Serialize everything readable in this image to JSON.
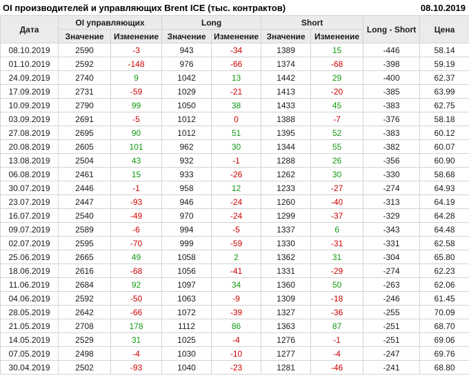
{
  "title": "OI производителей и управляющих Brent ICE (тыс. контрактов)",
  "report_date": "08.10.2019",
  "table": {
    "col_date": "Дата",
    "group_oi": "OI управляющих",
    "group_long": "Long",
    "group_short": "Short",
    "col_long_short": "Long - Short",
    "col_price": "Цена",
    "sub_value": "Значение",
    "sub_change": "Изменение"
  },
  "colors": {
    "positive": "#119911",
    "negative": "#cc0000"
  },
  "chart_data": {
    "type": "table",
    "title": "OI производителей и управляющих Brent ICE (тыс. контрактов)",
    "columns": [
      "Дата",
      "OI управляющих Значение",
      "OI управляющих Изменение",
      "Long Значение",
      "Long Изменение",
      "Short Значение",
      "Short Изменение",
      "Long - Short",
      "Цена"
    ],
    "rows": [
      {
        "date": "08.10.2019",
        "oi": 2590,
        "oi_chg": -3,
        "long": 943,
        "long_chg": -34,
        "short": 1389,
        "short_chg": 15,
        "long_short": -446,
        "price": "58.14"
      },
      {
        "date": "01.10.2019",
        "oi": 2592,
        "oi_chg": -148,
        "long": 976,
        "long_chg": -66,
        "short": 1374,
        "short_chg": -68,
        "long_short": -398,
        "price": "59.19"
      },
      {
        "date": "24.09.2019",
        "oi": 2740,
        "oi_chg": 9,
        "long": 1042,
        "long_chg": 13,
        "short": 1442,
        "short_chg": 29,
        "long_short": -400,
        "price": "62.37"
      },
      {
        "date": "17.09.2019",
        "oi": 2731,
        "oi_chg": -59,
        "long": 1029,
        "long_chg": -21,
        "short": 1413,
        "short_chg": -20,
        "long_short": -385,
        "price": "63.99"
      },
      {
        "date": "10.09.2019",
        "oi": 2790,
        "oi_chg": 99,
        "long": 1050,
        "long_chg": 38,
        "short": 1433,
        "short_chg": 45,
        "long_short": -383,
        "price": "62.75"
      },
      {
        "date": "03.09.2019",
        "oi": 2691,
        "oi_chg": -5,
        "long": 1012,
        "long_chg": 0,
        "short": 1388,
        "short_chg": -7,
        "long_short": -376,
        "price": "58.18"
      },
      {
        "date": "27.08.2019",
        "oi": 2695,
        "oi_chg": 90,
        "long": 1012,
        "long_chg": 51,
        "short": 1395,
        "short_chg": 52,
        "long_short": -383,
        "price": "60.12"
      },
      {
        "date": "20.08.2019",
        "oi": 2605,
        "oi_chg": 101,
        "long": 962,
        "long_chg": 30,
        "short": 1344,
        "short_chg": 55,
        "long_short": -382,
        "price": "60.07"
      },
      {
        "date": "13.08.2019",
        "oi": 2504,
        "oi_chg": 43,
        "long": 932,
        "long_chg": -1,
        "short": 1288,
        "short_chg": 26,
        "long_short": -356,
        "price": "60.90"
      },
      {
        "date": "06.08.2019",
        "oi": 2461,
        "oi_chg": 15,
        "long": 933,
        "long_chg": -26,
        "short": 1262,
        "short_chg": 30,
        "long_short": -330,
        "price": "58.68"
      },
      {
        "date": "30.07.2019",
        "oi": 2446,
        "oi_chg": -1,
        "long": 958,
        "long_chg": 12,
        "short": 1233,
        "short_chg": -27,
        "long_short": -274,
        "price": "64.93"
      },
      {
        "date": "23.07.2019",
        "oi": 2447,
        "oi_chg": -93,
        "long": 946,
        "long_chg": -24,
        "short": 1260,
        "short_chg": -40,
        "long_short": -313,
        "price": "64.19"
      },
      {
        "date": "16.07.2019",
        "oi": 2540,
        "oi_chg": -49,
        "long": 970,
        "long_chg": -24,
        "short": 1299,
        "short_chg": -37,
        "long_short": -329,
        "price": "64.28"
      },
      {
        "date": "09.07.2019",
        "oi": 2589,
        "oi_chg": -6,
        "long": 994,
        "long_chg": -5,
        "short": 1337,
        "short_chg": 6,
        "long_short": -343,
        "price": "64.48"
      },
      {
        "date": "02.07.2019",
        "oi": 2595,
        "oi_chg": -70,
        "long": 999,
        "long_chg": -59,
        "short": 1330,
        "short_chg": -31,
        "long_short": -331,
        "price": "62.58"
      },
      {
        "date": "25.06.2019",
        "oi": 2665,
        "oi_chg": 49,
        "long": 1058,
        "long_chg": 2,
        "short": 1362,
        "short_chg": 31,
        "long_short": -304,
        "price": "65.80"
      },
      {
        "date": "18.06.2019",
        "oi": 2616,
        "oi_chg": -68,
        "long": 1056,
        "long_chg": -41,
        "short": 1331,
        "short_chg": -29,
        "long_short": -274,
        "price": "62.23"
      },
      {
        "date": "11.06.2019",
        "oi": 2684,
        "oi_chg": 92,
        "long": 1097,
        "long_chg": 34,
        "short": 1360,
        "short_chg": 50,
        "long_short": -263,
        "price": "62.06"
      },
      {
        "date": "04.06.2019",
        "oi": 2592,
        "oi_chg": -50,
        "long": 1063,
        "long_chg": -9,
        "short": 1309,
        "short_chg": -18,
        "long_short": -246,
        "price": "61.45"
      },
      {
        "date": "28.05.2019",
        "oi": 2642,
        "oi_chg": -66,
        "long": 1072,
        "long_chg": -39,
        "short": 1327,
        "short_chg": -36,
        "long_short": -255,
        "price": "70.09"
      },
      {
        "date": "21.05.2019",
        "oi": 2708,
        "oi_chg": 178,
        "long": 1112,
        "long_chg": 86,
        "short": 1363,
        "short_chg": 87,
        "long_short": -251,
        "price": "68.70"
      },
      {
        "date": "14.05.2019",
        "oi": 2529,
        "oi_chg": 31,
        "long": 1025,
        "long_chg": -4,
        "short": 1276,
        "short_chg": -1,
        "long_short": -251,
        "price": "69.06"
      },
      {
        "date": "07.05.2019",
        "oi": 2498,
        "oi_chg": -4,
        "long": 1030,
        "long_chg": -10,
        "short": 1277,
        "short_chg": -4,
        "long_short": -247,
        "price": "69.76"
      },
      {
        "date": "30.04.2019",
        "oi": 2502,
        "oi_chg": -93,
        "long": 1040,
        "long_chg": -23,
        "short": 1281,
        "short_chg": -46,
        "long_short": -241,
        "price": "68.80"
      }
    ]
  }
}
